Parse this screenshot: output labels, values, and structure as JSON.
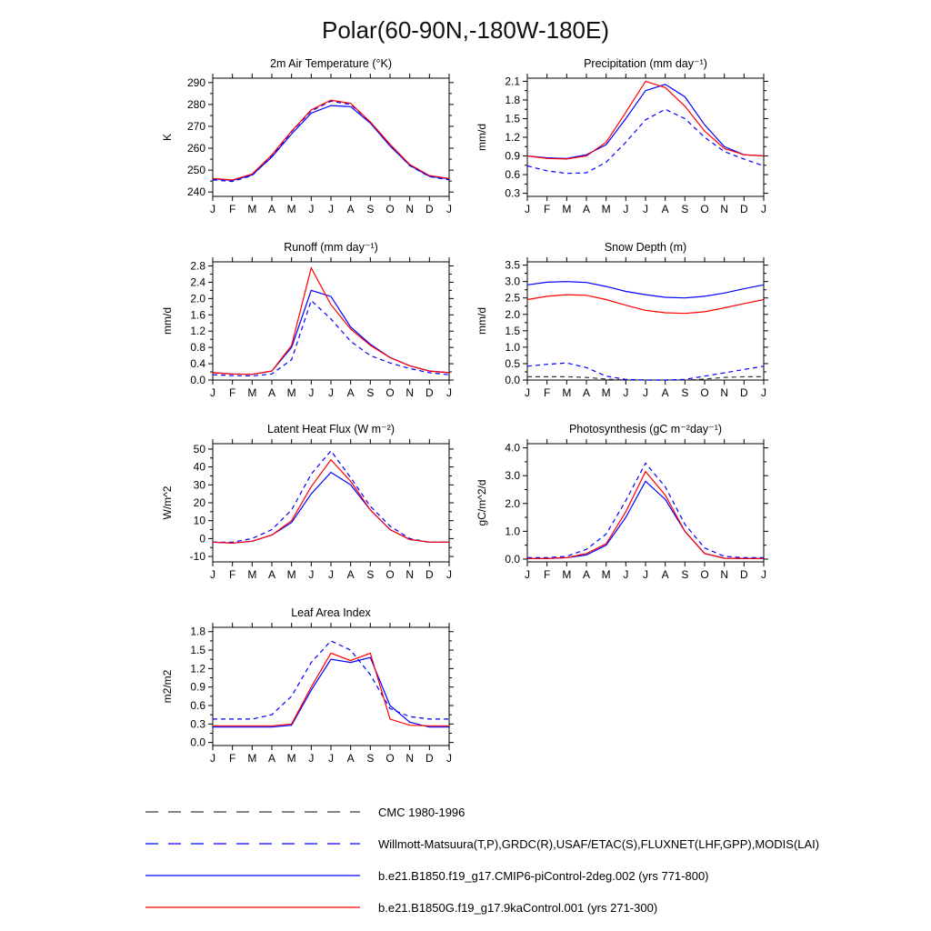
{
  "page_title": "Polar(60-90N,-180W-180E)",
  "months": [
    "J",
    "F",
    "M",
    "A",
    "M",
    "J",
    "J",
    "A",
    "S",
    "O",
    "N",
    "D",
    "J"
  ],
  "colors": {
    "obs_black": "#3a3a3a",
    "obs_blue": "#0000ff",
    "model_blue": "#0000ff",
    "model_red": "#ff0000"
  },
  "chart_data": [
    {
      "type": "line",
      "title": "2m Air Temperature (°K)",
      "ylabel": "K",
      "ylim": [
        238,
        292
      ],
      "yticks": [
        "240",
        "250",
        "260",
        "270",
        "280",
        "290"
      ],
      "series": [
        {
          "name": "obs-blend",
          "color": "#0000ff",
          "dashed": true,
          "values": [
            245.5,
            244.8,
            247.5,
            256.5,
            267.5,
            277.0,
            281.5,
            280.0,
            272.0,
            261.5,
            252.0,
            247.0,
            245.5
          ]
        },
        {
          "name": "model-picontrol",
          "color": "#0000ff",
          "dashed": false,
          "values": [
            246.0,
            245.3,
            247.8,
            256.0,
            266.5,
            276.0,
            279.5,
            279.0,
            271.5,
            261.0,
            252.2,
            247.2,
            246.0
          ]
        },
        {
          "name": "model-9ka",
          "color": "#ff0000",
          "dashed": false,
          "values": [
            246.2,
            245.5,
            248.2,
            257.0,
            267.8,
            277.5,
            282.0,
            280.5,
            272.0,
            261.8,
            252.6,
            247.5,
            246.2
          ]
        }
      ]
    },
    {
      "type": "line",
      "title": "Precipitation (mm day⁻¹)",
      "ylabel": "mm/d",
      "ylim": [
        0.25,
        2.15
      ],
      "yticks": [
        "0.3",
        "0.6",
        "0.9",
        "1.2",
        "1.5",
        "1.8",
        "2.1"
      ],
      "series": [
        {
          "name": "obs-blend",
          "color": "#0000ff",
          "dashed": true,
          "values": [
            0.74,
            0.66,
            0.62,
            0.63,
            0.8,
            1.12,
            1.48,
            1.65,
            1.5,
            1.2,
            0.97,
            0.85,
            0.74
          ]
        },
        {
          "name": "model-picontrol",
          "color": "#0000ff",
          "dashed": false,
          "values": [
            0.9,
            0.87,
            0.86,
            0.92,
            1.08,
            1.5,
            1.95,
            2.05,
            1.85,
            1.4,
            1.05,
            0.92,
            0.9
          ]
        },
        {
          "name": "model-9ka",
          "color": "#ff0000",
          "dashed": false,
          "values": [
            0.9,
            0.86,
            0.85,
            0.9,
            1.12,
            1.6,
            2.1,
            2.0,
            1.7,
            1.3,
            1.02,
            0.92,
            0.9
          ]
        }
      ]
    },
    {
      "type": "line",
      "title": "Runoff (mm day⁻¹)",
      "ylabel": "mm/d",
      "ylim": [
        0.0,
        2.9
      ],
      "yticks": [
        "0.0",
        "0.4",
        "0.8",
        "1.2",
        "1.6",
        "2.0",
        "2.4",
        "2.8"
      ],
      "series": [
        {
          "name": "obs-blend",
          "color": "#0000ff",
          "dashed": true,
          "values": [
            0.13,
            0.11,
            0.1,
            0.15,
            0.5,
            1.95,
            1.5,
            0.95,
            0.6,
            0.42,
            0.28,
            0.18,
            0.13
          ]
        },
        {
          "name": "model-picontrol",
          "color": "#0000ff",
          "dashed": false,
          "values": [
            0.18,
            0.15,
            0.14,
            0.22,
            0.8,
            2.2,
            2.05,
            1.3,
            0.88,
            0.55,
            0.35,
            0.22,
            0.18
          ]
        },
        {
          "name": "model-9ka",
          "color": "#ff0000",
          "dashed": false,
          "values": [
            0.18,
            0.15,
            0.14,
            0.22,
            0.85,
            2.75,
            1.85,
            1.25,
            0.85,
            0.55,
            0.35,
            0.22,
            0.18
          ]
        }
      ]
    },
    {
      "type": "line",
      "title": "Snow Depth (m)",
      "ylabel": "mm/d",
      "ylim": [
        0.0,
        3.6
      ],
      "yticks": [
        "0.0",
        "0.5",
        "1.0",
        "1.5",
        "2.0",
        "2.5",
        "3.0",
        "3.5"
      ],
      "series": [
        {
          "name": "obs-cmc",
          "color": "#3a3a3a",
          "dashed": true,
          "values": [
            0.1,
            0.1,
            0.1,
            0.08,
            0.03,
            0.0,
            0.0,
            0.0,
            0.0,
            0.03,
            0.08,
            0.1,
            0.1
          ]
        },
        {
          "name": "obs-blend",
          "color": "#0000ff",
          "dashed": true,
          "values": [
            0.42,
            0.48,
            0.52,
            0.38,
            0.12,
            0.02,
            0.0,
            0.0,
            0.02,
            0.12,
            0.22,
            0.32,
            0.42
          ]
        },
        {
          "name": "model-picontrol",
          "color": "#0000ff",
          "dashed": false,
          "values": [
            2.9,
            2.98,
            3.0,
            2.97,
            2.85,
            2.7,
            2.6,
            2.52,
            2.5,
            2.55,
            2.65,
            2.78,
            2.9
          ]
        },
        {
          "name": "model-9ka",
          "color": "#ff0000",
          "dashed": false,
          "values": [
            2.45,
            2.55,
            2.6,
            2.58,
            2.45,
            2.28,
            2.12,
            2.05,
            2.03,
            2.08,
            2.2,
            2.33,
            2.45
          ]
        }
      ]
    },
    {
      "type": "line",
      "title": "Latent Heat Flux (W m⁻²)",
      "ylabel": "W/m^2",
      "ylim": [
        -13,
        53
      ],
      "yticks": [
        "-10",
        "0",
        "10",
        "20",
        "30",
        "40",
        "50"
      ],
      "series": [
        {
          "name": "obs-blend",
          "color": "#0000ff",
          "dashed": true,
          "values": [
            -2,
            -2,
            0,
            5,
            16,
            36,
            49,
            34,
            18,
            7,
            0,
            -2,
            -2
          ]
        },
        {
          "name": "model-picontrol",
          "color": "#0000ff",
          "dashed": false,
          "values": [
            -2,
            -2.5,
            -1.5,
            2,
            9,
            25,
            37,
            30,
            16,
            5,
            -0.5,
            -2,
            -2
          ]
        },
        {
          "name": "model-9ka",
          "color": "#ff0000",
          "dashed": false,
          "values": [
            -2,
            -2.5,
            -1.5,
            2,
            10,
            29,
            44,
            32,
            16,
            5,
            -0.5,
            -2,
            -2
          ]
        }
      ]
    },
    {
      "type": "line",
      "title": "Photosynthesis (gC m⁻²day⁻¹)",
      "ylabel": "gC/m^2/d",
      "ylim": [
        -0.1,
        4.15
      ],
      "yticks": [
        "0.0",
        "1.0",
        "2.0",
        "3.0",
        "4.0"
      ],
      "series": [
        {
          "name": "obs-blend",
          "color": "#0000ff",
          "dashed": true,
          "values": [
            0.05,
            0.05,
            0.1,
            0.35,
            0.9,
            2.1,
            3.45,
            2.6,
            1.25,
            0.4,
            0.1,
            0.05,
            0.05
          ]
        },
        {
          "name": "model-picontrol",
          "color": "#0000ff",
          "dashed": false,
          "values": [
            0.02,
            0.02,
            0.05,
            0.15,
            0.5,
            1.5,
            2.8,
            2.15,
            1.0,
            0.2,
            0.03,
            0.02,
            0.02
          ]
        },
        {
          "name": "model-9ka",
          "color": "#ff0000",
          "dashed": false,
          "values": [
            0.02,
            0.02,
            0.05,
            0.2,
            0.55,
            1.7,
            3.15,
            2.3,
            1.0,
            0.2,
            0.03,
            0.02,
            0.02
          ]
        }
      ]
    },
    {
      "type": "line",
      "title": "Leaf Area Index",
      "ylabel": "m2/m2",
      "ylim": [
        -0.05,
        1.87
      ],
      "yticks": [
        "0.0",
        "0.3",
        "0.6",
        "0.9",
        "1.2",
        "1.5",
        "1.8"
      ],
      "series": [
        {
          "name": "obs-blend",
          "color": "#0000ff",
          "dashed": true,
          "values": [
            0.38,
            0.38,
            0.38,
            0.45,
            0.75,
            1.3,
            1.65,
            1.5,
            1.1,
            0.55,
            0.42,
            0.38,
            0.38
          ]
        },
        {
          "name": "model-picontrol",
          "color": "#0000ff",
          "dashed": false,
          "values": [
            0.25,
            0.25,
            0.25,
            0.25,
            0.28,
            0.85,
            1.35,
            1.3,
            1.38,
            0.6,
            0.33,
            0.25,
            0.25
          ]
        },
        {
          "name": "model-9ka",
          "color": "#ff0000",
          "dashed": false,
          "values": [
            0.27,
            0.27,
            0.27,
            0.27,
            0.3,
            0.9,
            1.45,
            1.33,
            1.45,
            0.38,
            0.28,
            0.27,
            0.27
          ]
        }
      ]
    }
  ],
  "legend": {
    "entries": [
      {
        "label": "CMC 1980-1996",
        "color": "#3a3a3a",
        "dash": "14 11"
      },
      {
        "label": "Willmott-Matsuura(T,P),GRDC(R),USAF/ETAC(S),FLUXNET(LHF,GPP),MODIS(LAI)",
        "color": "#0000ff",
        "dash": "14 11"
      },
      {
        "label": "b.e21.B1850.f19_g17.CMIP6-piControl-2deg.002 (yrs 771-800)",
        "color": "#0000ff",
        "dash": ""
      },
      {
        "label": "b.e21.B1850G.f19_g17.9kaControl.001 (yrs 271-300)",
        "color": "#ff0000",
        "dash": ""
      }
    ]
  }
}
